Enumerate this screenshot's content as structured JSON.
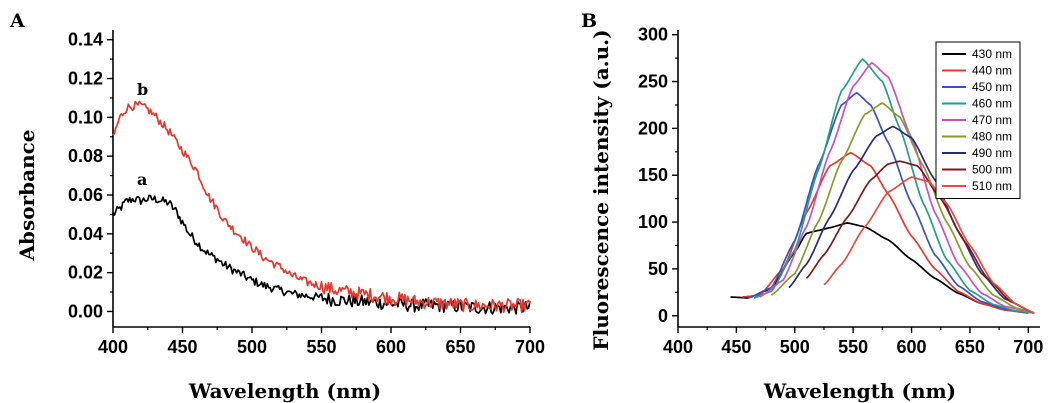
{
  "chart_data": [
    {
      "panel": "A",
      "type": "line",
      "xlabel": "Wavelength (nm)",
      "ylabel": "Absorbance",
      "xlim": [
        400,
        700
      ],
      "ylim": [
        -0.008,
        0.145
      ],
      "xticks": [
        "400",
        "450",
        "500",
        "550",
        "600",
        "650",
        "700"
      ],
      "yticks": [
        "0.00",
        "0.02",
        "0.04",
        "0.06",
        "0.08",
        "0.10",
        "0.12",
        "0.14"
      ],
      "series": [
        {
          "name": "a",
          "color": "#000000",
          "x": [
            400,
            405,
            410,
            415,
            420,
            425,
            430,
            435,
            440,
            445,
            450,
            455,
            460,
            465,
            470,
            475,
            480,
            490,
            500,
            510,
            520,
            530,
            540,
            550,
            560,
            580,
            600,
            620,
            640,
            660,
            680,
            700
          ],
          "y": [
            0.05,
            0.053,
            0.057,
            0.058,
            0.057,
            0.058,
            0.058,
            0.057,
            0.056,
            0.052,
            0.046,
            0.04,
            0.036,
            0.032,
            0.029,
            0.027,
            0.024,
            0.02,
            0.016,
            0.013,
            0.011,
            0.009,
            0.008,
            0.007,
            0.006,
            0.005,
            0.004,
            0.003,
            0.003,
            0.002,
            0.002,
            0.002
          ]
        },
        {
          "name": "b",
          "color": "#e8372c",
          "x": [
            400,
            405,
            410,
            415,
            420,
            425,
            430,
            435,
            440,
            445,
            450,
            455,
            460,
            465,
            470,
            475,
            480,
            490,
            500,
            510,
            520,
            530,
            540,
            550,
            560,
            580,
            600,
            620,
            640,
            660,
            680,
            700
          ],
          "y": [
            0.09,
            0.1,
            0.105,
            0.106,
            0.106,
            0.104,
            0.101,
            0.097,
            0.093,
            0.088,
            0.083,
            0.078,
            0.073,
            0.065,
            0.058,
            0.053,
            0.047,
            0.04,
            0.033,
            0.027,
            0.023,
            0.018,
            0.015,
            0.013,
            0.011,
            0.009,
            0.007,
            0.005,
            0.004,
            0.003,
            0.003,
            0.003
          ]
        }
      ],
      "labels": [
        "a",
        "b"
      ]
    },
    {
      "panel": "B",
      "type": "line",
      "xlabel": "Wavelength (nm)",
      "ylabel": "Fluorescence intensity (a.u.)",
      "xlim": [
        400,
        710
      ],
      "ylim": [
        -12,
        305
      ],
      "xticks": [
        "400",
        "450",
        "500",
        "550",
        "600",
        "650",
        "700"
      ],
      "yticks": [
        "0",
        "50",
        "100",
        "150",
        "200",
        "250",
        "300"
      ],
      "legend_position": "top-right",
      "series": [
        {
          "name": "430 nm",
          "color": "#000000",
          "peak_x": 545,
          "peak_y": 99,
          "x": [
            445,
            460,
            480,
            500,
            510,
            520,
            530,
            545,
            560,
            580,
            600,
            620,
            640,
            660,
            680,
            700
          ],
          "y": [
            20,
            19,
            29,
            68,
            88,
            91,
            94,
            99,
            95,
            81,
            60,
            40,
            24,
            13,
            7,
            3
          ]
        },
        {
          "name": "440 nm",
          "color": "#e8372c",
          "peak_x": 548,
          "peak_y": 174,
          "x": [
            455,
            470,
            490,
            510,
            530,
            548,
            565,
            580,
            600,
            620,
            640,
            660,
            680,
            700
          ],
          "y": [
            20,
            22,
            50,
            110,
            160,
            174,
            160,
            130,
            85,
            50,
            26,
            13,
            6,
            3
          ]
        },
        {
          "name": "450 nm",
          "color": "#3a50c8",
          "peak_x": 553,
          "peak_y": 238,
          "x": [
            460,
            480,
            500,
            520,
            540,
            553,
            565,
            580,
            600,
            620,
            640,
            660,
            680,
            700
          ],
          "y": [
            19,
            30,
            80,
            160,
            225,
            238,
            225,
            185,
            120,
            65,
            32,
            15,
            7,
            3
          ]
        },
        {
          "name": "460 nm",
          "color": "#1fa08c",
          "peak_x": 558,
          "peak_y": 274,
          "x": [
            465,
            480,
            500,
            520,
            540,
            558,
            575,
            590,
            610,
            630,
            650,
            670,
            690,
            705
          ],
          "y": [
            19,
            26,
            70,
            155,
            240,
            274,
            250,
            200,
            120,
            60,
            27,
            12,
            5,
            3
          ]
        },
        {
          "name": "470 nm",
          "color": "#c850c8",
          "peak_x": 566,
          "peak_y": 270,
          "x": [
            470,
            490,
            510,
            530,
            550,
            566,
            580,
            600,
            620,
            640,
            660,
            680,
            705
          ],
          "y": [
            20,
            38,
            95,
            175,
            245,
            270,
            255,
            190,
            110,
            55,
            24,
            10,
            3
          ]
        },
        {
          "name": "480 nm",
          "color": "#8a9a2a",
          "peak_x": 575,
          "peak_y": 227,
          "x": [
            480,
            500,
            520,
            540,
            560,
            575,
            590,
            610,
            630,
            650,
            670,
            690,
            705
          ],
          "y": [
            22,
            45,
            100,
            165,
            215,
            227,
            212,
            160,
            100,
            52,
            22,
            8,
            3
          ]
        },
        {
          "name": "490 nm",
          "color": "#2a2a7a",
          "peak_x": 584,
          "peak_y": 202,
          "x": [
            495,
            510,
            530,
            550,
            570,
            584,
            600,
            620,
            640,
            660,
            680,
            705
          ],
          "y": [
            30,
            55,
            105,
            155,
            192,
            202,
            190,
            145,
            90,
            45,
            18,
            3
          ]
        },
        {
          "name": "500 nm",
          "color": "#7a1a1a",
          "peak_x": 590,
          "peak_y": 165,
          "x": [
            510,
            525,
            545,
            565,
            580,
            590,
            605,
            625,
            645,
            665,
            685,
            705
          ],
          "y": [
            40,
            65,
            105,
            145,
            162,
            165,
            160,
            125,
            80,
            40,
            15,
            3
          ]
        },
        {
          "name": "510 nm",
          "color": "#f0483c",
          "peak_x": 600,
          "peak_y": 148,
          "x": [
            525,
            540,
            560,
            580,
            600,
            615,
            630,
            650,
            670,
            690,
            705
          ],
          "y": [
            33,
            55,
            95,
            132,
            148,
            143,
            120,
            75,
            35,
            12,
            3
          ]
        }
      ]
    }
  ],
  "panels": {
    "a": {
      "letter": "A"
    },
    "b": {
      "letter": "B"
    }
  }
}
